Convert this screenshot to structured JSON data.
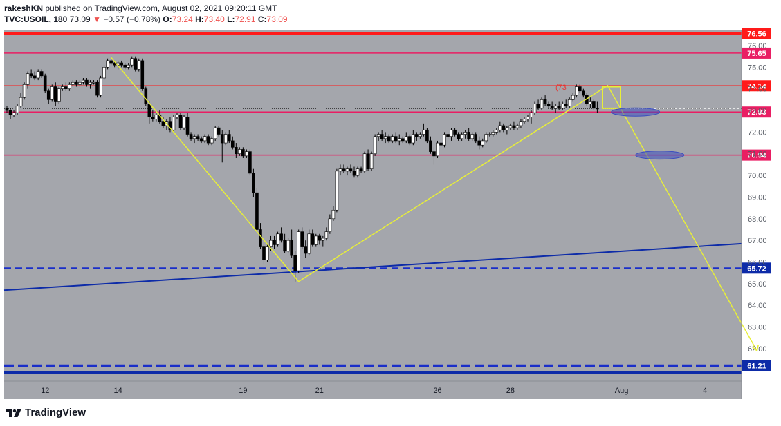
{
  "header": {
    "publisher": "rakeshKN",
    "published_text": "published on TradingView.com, August 02, 2021 09:20:11 GMT",
    "symbol": "TVC:USOIL, 180",
    "last": "73.09",
    "change_arrow": "▼",
    "change": "−0.57 (−0.78%)",
    "o_label": "O:",
    "o_value": "73.24",
    "h_label": "H:",
    "h_value": "73.40",
    "l_label": "L:",
    "l_value": "72.91",
    "c_label": "C:",
    "c_value": "73.09"
  },
  "footer": {
    "brand": "TradingView",
    "logo_icon": "tradingview-logo-icon"
  },
  "colors": {
    "background": "#a4a6ac",
    "red_line": "#ff1a1a",
    "pink_line": "#e91e63",
    "blue_line": "#0d2ba8",
    "blue_dashed": "#1a2ec9",
    "yellow_line": "#e8ef38",
    "bull_candle": "#ffffff",
    "bear_candle": "#000000",
    "ellipse": "#3a4cc0"
  },
  "chart_data": {
    "type": "candlestick",
    "symbol": "TVC:USOIL",
    "timeframe": "180",
    "ylim": [
      60.5,
      76.7
    ],
    "y_ticks": [
      62.0,
      63.0,
      64.0,
      65.0,
      66.0,
      67.0,
      68.0,
      69.0,
      70.0,
      71.0,
      72.0,
      73.0,
      74.0,
      75.0,
      76.0
    ],
    "y_tick_labels": [
      "62.00",
      "63.00",
      "64.00",
      "65.00",
      "66.00",
      "67.00",
      "68.00",
      "69.00",
      "70.00",
      "71.00",
      "72.00",
      "73.00",
      "74.00",
      "75.00",
      "76.00"
    ],
    "x_tick_labels": [
      "12",
      "14",
      "19",
      "21",
      "26",
      "28",
      "Aug",
      "4"
    ],
    "x_tick_index": [
      11,
      32,
      68,
      90,
      124,
      145,
      177,
      201
    ],
    "horizontal_levels": [
      {
        "value": 76.56,
        "label": "76.56",
        "style": "solid-thick",
        "color": "red"
      },
      {
        "value": 75.65,
        "label": "75.65",
        "style": "solid",
        "color": "pink"
      },
      {
        "value": 74.14,
        "label": "74.14",
        "style": "solid",
        "color": "red"
      },
      {
        "value": 72.93,
        "label": "72.93",
        "style": "solid",
        "color": "pink"
      },
      {
        "value": 70.94,
        "label": "70.94",
        "style": "solid",
        "color": "pink"
      },
      {
        "value": 65.72,
        "label": "65.72",
        "style": "dashed",
        "color": "blue"
      },
      {
        "value": 61.21,
        "label": "61.21",
        "style": "dashed-thick",
        "color": "blue"
      },
      {
        "value": 60.9,
        "label": "",
        "style": "solid-thick",
        "color": "blue"
      }
    ],
    "last_price": 73.09,
    "trendline": {
      "from": [
        0,
        64.7
      ],
      "to": [
        220,
        66.85
      ]
    },
    "zigzag": [
      [
        30,
        75.45
      ],
      [
        84,
        65.1
      ],
      [
        173,
        74.15
      ],
      [
        216,
        61.9
      ]
    ],
    "ellipses": [
      [
        182,
        72.93
      ],
      [
        189,
        70.94
      ]
    ],
    "annotation": "(73",
    "candles": [
      [
        0,
        73.1,
        73.2,
        72.9,
        73.0
      ],
      [
        1,
        73.0,
        73.1,
        72.6,
        72.8
      ],
      [
        2,
        72.8,
        73.0,
        72.7,
        72.9
      ],
      [
        3,
        72.9,
        73.3,
        72.8,
        73.2
      ],
      [
        4,
        73.2,
        73.8,
        73.1,
        73.6
      ],
      [
        5,
        73.6,
        74.3,
        73.5,
        74.2
      ],
      [
        6,
        74.2,
        74.8,
        74.0,
        74.7
      ],
      [
        7,
        74.7,
        74.9,
        74.5,
        74.6
      ],
      [
        8,
        74.6,
        74.8,
        74.4,
        74.5
      ],
      [
        9,
        74.5,
        74.9,
        74.4,
        74.8
      ],
      [
        10,
        74.8,
        74.9,
        74.5,
        74.6
      ],
      [
        11,
        74.6,
        74.7,
        73.8,
        73.9
      ],
      [
        12,
        73.9,
        74.0,
        73.3,
        73.5
      ],
      [
        13,
        73.5,
        74.2,
        73.4,
        74.1
      ],
      [
        14,
        74.1,
        74.3,
        73.2,
        73.4
      ],
      [
        15,
        73.4,
        74.1,
        73.3,
        74.0
      ],
      [
        16,
        74.0,
        74.2,
        73.9,
        74.1
      ],
      [
        17,
        74.1,
        74.3,
        73.9,
        74.0
      ],
      [
        18,
        74.0,
        74.3,
        73.9,
        74.2
      ],
      [
        19,
        74.2,
        74.4,
        74.1,
        74.3
      ],
      [
        20,
        74.3,
        74.4,
        74.1,
        74.2
      ],
      [
        21,
        74.2,
        74.4,
        74.1,
        74.3
      ],
      [
        22,
        74.3,
        74.5,
        74.2,
        74.4
      ],
      [
        23,
        74.4,
        74.5,
        74.1,
        74.2
      ],
      [
        24,
        74.2,
        74.4,
        74.0,
        74.3
      ],
      [
        25,
        74.3,
        74.4,
        74.2,
        74.3
      ],
      [
        26,
        74.3,
        74.4,
        73.6,
        73.7
      ],
      [
        27,
        73.7,
        74.6,
        73.6,
        74.5
      ],
      [
        28,
        74.5,
        75.1,
        74.4,
        75.0
      ],
      [
        29,
        75.0,
        75.4,
        74.9,
        75.3
      ],
      [
        30,
        75.3,
        75.5,
        75.1,
        75.2
      ],
      [
        31,
        75.2,
        75.3,
        75.0,
        75.1
      ],
      [
        32,
        75.1,
        75.3,
        74.9,
        75.2
      ],
      [
        33,
        75.2,
        75.3,
        75.0,
        75.1
      ],
      [
        34,
        75.1,
        75.2,
        74.9,
        75.0
      ],
      [
        35,
        75.0,
        75.2,
        74.9,
        75.1
      ],
      [
        36,
        75.1,
        75.5,
        75.0,
        75.4
      ],
      [
        37,
        75.4,
        75.5,
        74.8,
        74.9
      ],
      [
        38,
        74.9,
        75.4,
        74.8,
        75.3
      ],
      [
        39,
        75.3,
        75.4,
        73.9,
        74.0
      ],
      [
        40,
        74.0,
        74.1,
        73.2,
        73.3
      ],
      [
        41,
        73.3,
        73.4,
        72.4,
        72.7
      ],
      [
        42,
        72.7,
        73.0,
        72.5,
        72.6
      ],
      [
        43,
        72.6,
        72.9,
        72.5,
        72.8
      ],
      [
        44,
        72.8,
        73.0,
        72.4,
        72.5
      ],
      [
        45,
        72.5,
        72.7,
        72.2,
        72.3
      ],
      [
        46,
        72.3,
        72.6,
        72.1,
        72.5
      ],
      [
        47,
        72.5,
        72.7,
        72.0,
        72.1
      ],
      [
        48,
        72.1,
        72.8,
        72.0,
        72.7
      ],
      [
        49,
        72.7,
        72.9,
        72.6,
        72.8
      ],
      [
        50,
        72.8,
        72.9,
        72.1,
        72.2
      ],
      [
        51,
        72.2,
        72.8,
        72.1,
        72.7
      ],
      [
        52,
        72.7,
        72.9,
        71.8,
        71.9
      ],
      [
        53,
        71.9,
        72.0,
        71.6,
        71.7
      ],
      [
        54,
        71.7,
        71.9,
        71.5,
        71.8
      ],
      [
        55,
        71.8,
        71.9,
        71.6,
        71.7
      ],
      [
        56,
        71.7,
        71.8,
        71.5,
        71.6
      ],
      [
        57,
        71.6,
        71.9,
        71.5,
        71.8
      ],
      [
        58,
        71.8,
        71.9,
        71.4,
        71.5
      ],
      [
        59,
        71.5,
        71.8,
        71.4,
        71.7
      ],
      [
        60,
        71.7,
        72.3,
        71.6,
        72.2
      ],
      [
        61,
        72.2,
        72.3,
        71.8,
        71.9
      ],
      [
        62,
        71.9,
        72.1,
        70.6,
        71.5
      ],
      [
        63,
        71.5,
        72.0,
        71.4,
        71.9
      ],
      [
        64,
        71.9,
        72.1,
        71.5,
        71.6
      ],
      [
        65,
        71.6,
        71.8,
        71.2,
        71.3
      ],
      [
        66,
        71.3,
        71.5,
        70.8,
        71.0
      ],
      [
        67,
        71.0,
        71.3,
        70.9,
        71.2
      ],
      [
        68,
        71.2,
        71.3,
        70.8,
        70.9
      ],
      [
        69,
        70.9,
        71.2,
        70.8,
        71.1
      ],
      [
        70,
        71.1,
        71.2,
        70.0,
        70.1
      ],
      [
        71,
        70.1,
        70.3,
        69.0,
        69.2
      ],
      [
        72,
        69.2,
        69.4,
        67.4,
        67.5
      ],
      [
        73,
        67.5,
        67.8,
        66.6,
        66.7
      ],
      [
        74,
        66.7,
        66.9,
        65.9,
        66.1
      ],
      [
        75,
        66.1,
        66.8,
        66.0,
        66.7
      ],
      [
        76,
        66.7,
        67.2,
        66.5,
        67.0
      ],
      [
        77,
        67.0,
        67.2,
        66.6,
        66.8
      ],
      [
        78,
        66.8,
        67.4,
        66.7,
        67.3
      ],
      [
        79,
        67.3,
        67.6,
        66.9,
        67.0
      ],
      [
        80,
        67.0,
        67.3,
        66.4,
        66.5
      ],
      [
        81,
        66.5,
        67.1,
        66.4,
        67.0
      ],
      [
        82,
        67.0,
        67.5,
        66.2,
        66.3
      ],
      [
        83,
        66.3,
        66.5,
        65.1,
        65.6
      ],
      [
        84,
        65.6,
        67.5,
        65.5,
        67.4
      ],
      [
        85,
        67.4,
        67.6,
        66.6,
        66.7
      ],
      [
        86,
        66.7,
        67.0,
        66.2,
        66.4
      ],
      [
        87,
        66.4,
        67.5,
        66.3,
        67.3
      ],
      [
        88,
        67.3,
        67.5,
        66.7,
        66.8
      ],
      [
        89,
        66.8,
        67.3,
        66.7,
        67.2
      ],
      [
        90,
        67.2,
        67.3,
        66.8,
        67.0
      ],
      [
        91,
        67.0,
        67.2,
        66.7,
        67.1
      ],
      [
        92,
        67.1,
        67.6,
        67.0,
        67.4
      ],
      [
        93,
        67.4,
        68.2,
        67.3,
        68.0
      ],
      [
        94,
        68.0,
        68.6,
        67.9,
        68.4
      ],
      [
        95,
        68.4,
        70.3,
        68.3,
        70.2
      ],
      [
        96,
        70.2,
        70.5,
        70.0,
        70.3
      ],
      [
        97,
        70.3,
        70.5,
        70.1,
        70.2
      ],
      [
        98,
        70.2,
        70.4,
        70.0,
        70.3
      ],
      [
        99,
        70.3,
        70.5,
        70.1,
        70.2
      ],
      [
        100,
        70.2,
        70.4,
        69.9,
        70.0
      ],
      [
        101,
        70.0,
        70.4,
        69.9,
        70.3
      ],
      [
        102,
        70.3,
        70.4,
        70.1,
        70.2
      ],
      [
        103,
        70.2,
        71.1,
        70.1,
        71.0
      ],
      [
        104,
        71.0,
        71.2,
        70.2,
        70.3
      ],
      [
        105,
        70.3,
        71.1,
        70.2,
        71.0
      ],
      [
        106,
        71.0,
        71.9,
        70.9,
        71.8
      ],
      [
        107,
        71.8,
        72.0,
        71.6,
        71.9
      ],
      [
        108,
        71.9,
        72.1,
        71.6,
        71.7
      ],
      [
        109,
        71.7,
        72.0,
        71.5,
        71.8
      ],
      [
        110,
        71.8,
        71.9,
        71.5,
        71.6
      ],
      [
        111,
        71.6,
        71.9,
        71.5,
        71.8
      ],
      [
        112,
        71.8,
        72.0,
        71.5,
        71.6
      ],
      [
        113,
        71.6,
        71.9,
        71.4,
        71.7
      ],
      [
        114,
        71.7,
        71.8,
        71.5,
        71.6
      ],
      [
        115,
        71.6,
        72.0,
        71.5,
        71.8
      ],
      [
        116,
        71.8,
        71.9,
        71.4,
        71.5
      ],
      [
        117,
        71.5,
        72.1,
        71.4,
        71.9
      ],
      [
        118,
        71.9,
        72.0,
        71.6,
        71.8
      ],
      [
        119,
        71.8,
        72.0,
        71.7,
        71.9
      ],
      [
        120,
        71.9,
        72.4,
        71.8,
        72.1
      ],
      [
        121,
        72.1,
        72.2,
        71.5,
        71.6
      ],
      [
        122,
        71.6,
        71.8,
        71.0,
        71.1
      ],
      [
        123,
        71.1,
        71.3,
        70.5,
        70.9
      ],
      [
        124,
        70.9,
        71.6,
        70.8,
        71.5
      ],
      [
        125,
        71.5,
        71.7,
        71.3,
        71.4
      ],
      [
        126,
        71.4,
        72.0,
        71.3,
        71.9
      ],
      [
        127,
        71.9,
        72.0,
        71.7,
        71.8
      ],
      [
        128,
        71.8,
        72.2,
        71.6,
        72.1
      ],
      [
        129,
        72.1,
        72.2,
        71.8,
        71.9
      ],
      [
        130,
        71.9,
        72.0,
        71.6,
        71.7
      ],
      [
        131,
        71.7,
        72.0,
        71.6,
        71.9
      ],
      [
        132,
        71.9,
        72.1,
        71.7,
        72.0
      ],
      [
        133,
        72.0,
        72.2,
        71.6,
        71.7
      ],
      [
        134,
        71.7,
        72.0,
        71.6,
        71.9
      ],
      [
        135,
        71.9,
        72.0,
        71.5,
        71.6
      ],
      [
        136,
        71.6,
        71.8,
        71.2,
        71.4
      ],
      [
        137,
        71.4,
        71.7,
        71.3,
        71.6
      ],
      [
        138,
        71.6,
        72.0,
        71.5,
        71.9
      ],
      [
        139,
        71.9,
        72.0,
        71.8,
        71.9
      ],
      [
        140,
        71.9,
        72.1,
        71.8,
        72.0
      ],
      [
        141,
        72.0,
        72.2,
        71.9,
        72.1
      ],
      [
        142,
        72.1,
        72.5,
        72.0,
        72.3
      ],
      [
        143,
        72.3,
        72.4,
        72.0,
        72.1
      ],
      [
        144,
        72.1,
        72.3,
        71.9,
        72.2
      ],
      [
        145,
        72.2,
        72.4,
        72.1,
        72.3
      ],
      [
        146,
        72.3,
        72.5,
        72.1,
        72.2
      ],
      [
        147,
        72.2,
        72.4,
        72.1,
        72.3
      ],
      [
        148,
        72.3,
        72.6,
        72.2,
        72.5
      ],
      [
        149,
        72.5,
        72.7,
        72.4,
        72.6
      ],
      [
        150,
        72.6,
        72.8,
        72.5,
        72.7
      ],
      [
        151,
        72.7,
        73.0,
        72.4,
        72.9
      ],
      [
        152,
        72.9,
        73.4,
        72.8,
        73.3
      ],
      [
        153,
        73.3,
        73.5,
        73.0,
        73.1
      ],
      [
        154,
        73.1,
        73.6,
        73.0,
        73.5
      ],
      [
        155,
        73.5,
        73.7,
        73.2,
        73.3
      ],
      [
        156,
        73.3,
        73.4,
        73.1,
        73.2
      ],
      [
        157,
        73.2,
        73.4,
        73.0,
        73.1
      ],
      [
        158,
        73.1,
        73.3,
        72.9,
        73.2
      ],
      [
        159,
        73.2,
        73.4,
        73.0,
        73.1
      ],
      [
        160,
        73.1,
        73.4,
        73.0,
        73.3
      ],
      [
        161,
        73.3,
        73.5,
        73.1,
        73.2
      ],
      [
        162,
        73.2,
        73.6,
        73.1,
        73.5
      ],
      [
        163,
        73.5,
        73.8,
        73.4,
        73.7
      ],
      [
        164,
        73.7,
        74.2,
        73.6,
        74.1
      ],
      [
        165,
        74.1,
        74.2,
        73.8,
        73.9
      ],
      [
        166,
        73.9,
        74.0,
        73.6,
        73.7
      ],
      [
        167,
        73.7,
        73.8,
        73.2,
        73.3
      ],
      [
        168,
        73.3,
        73.6,
        73.1,
        73.4
      ],
      [
        169,
        73.4,
        73.5,
        73.0,
        73.1
      ],
      [
        170,
        73.1,
        73.4,
        72.9,
        73.09
      ]
    ]
  }
}
